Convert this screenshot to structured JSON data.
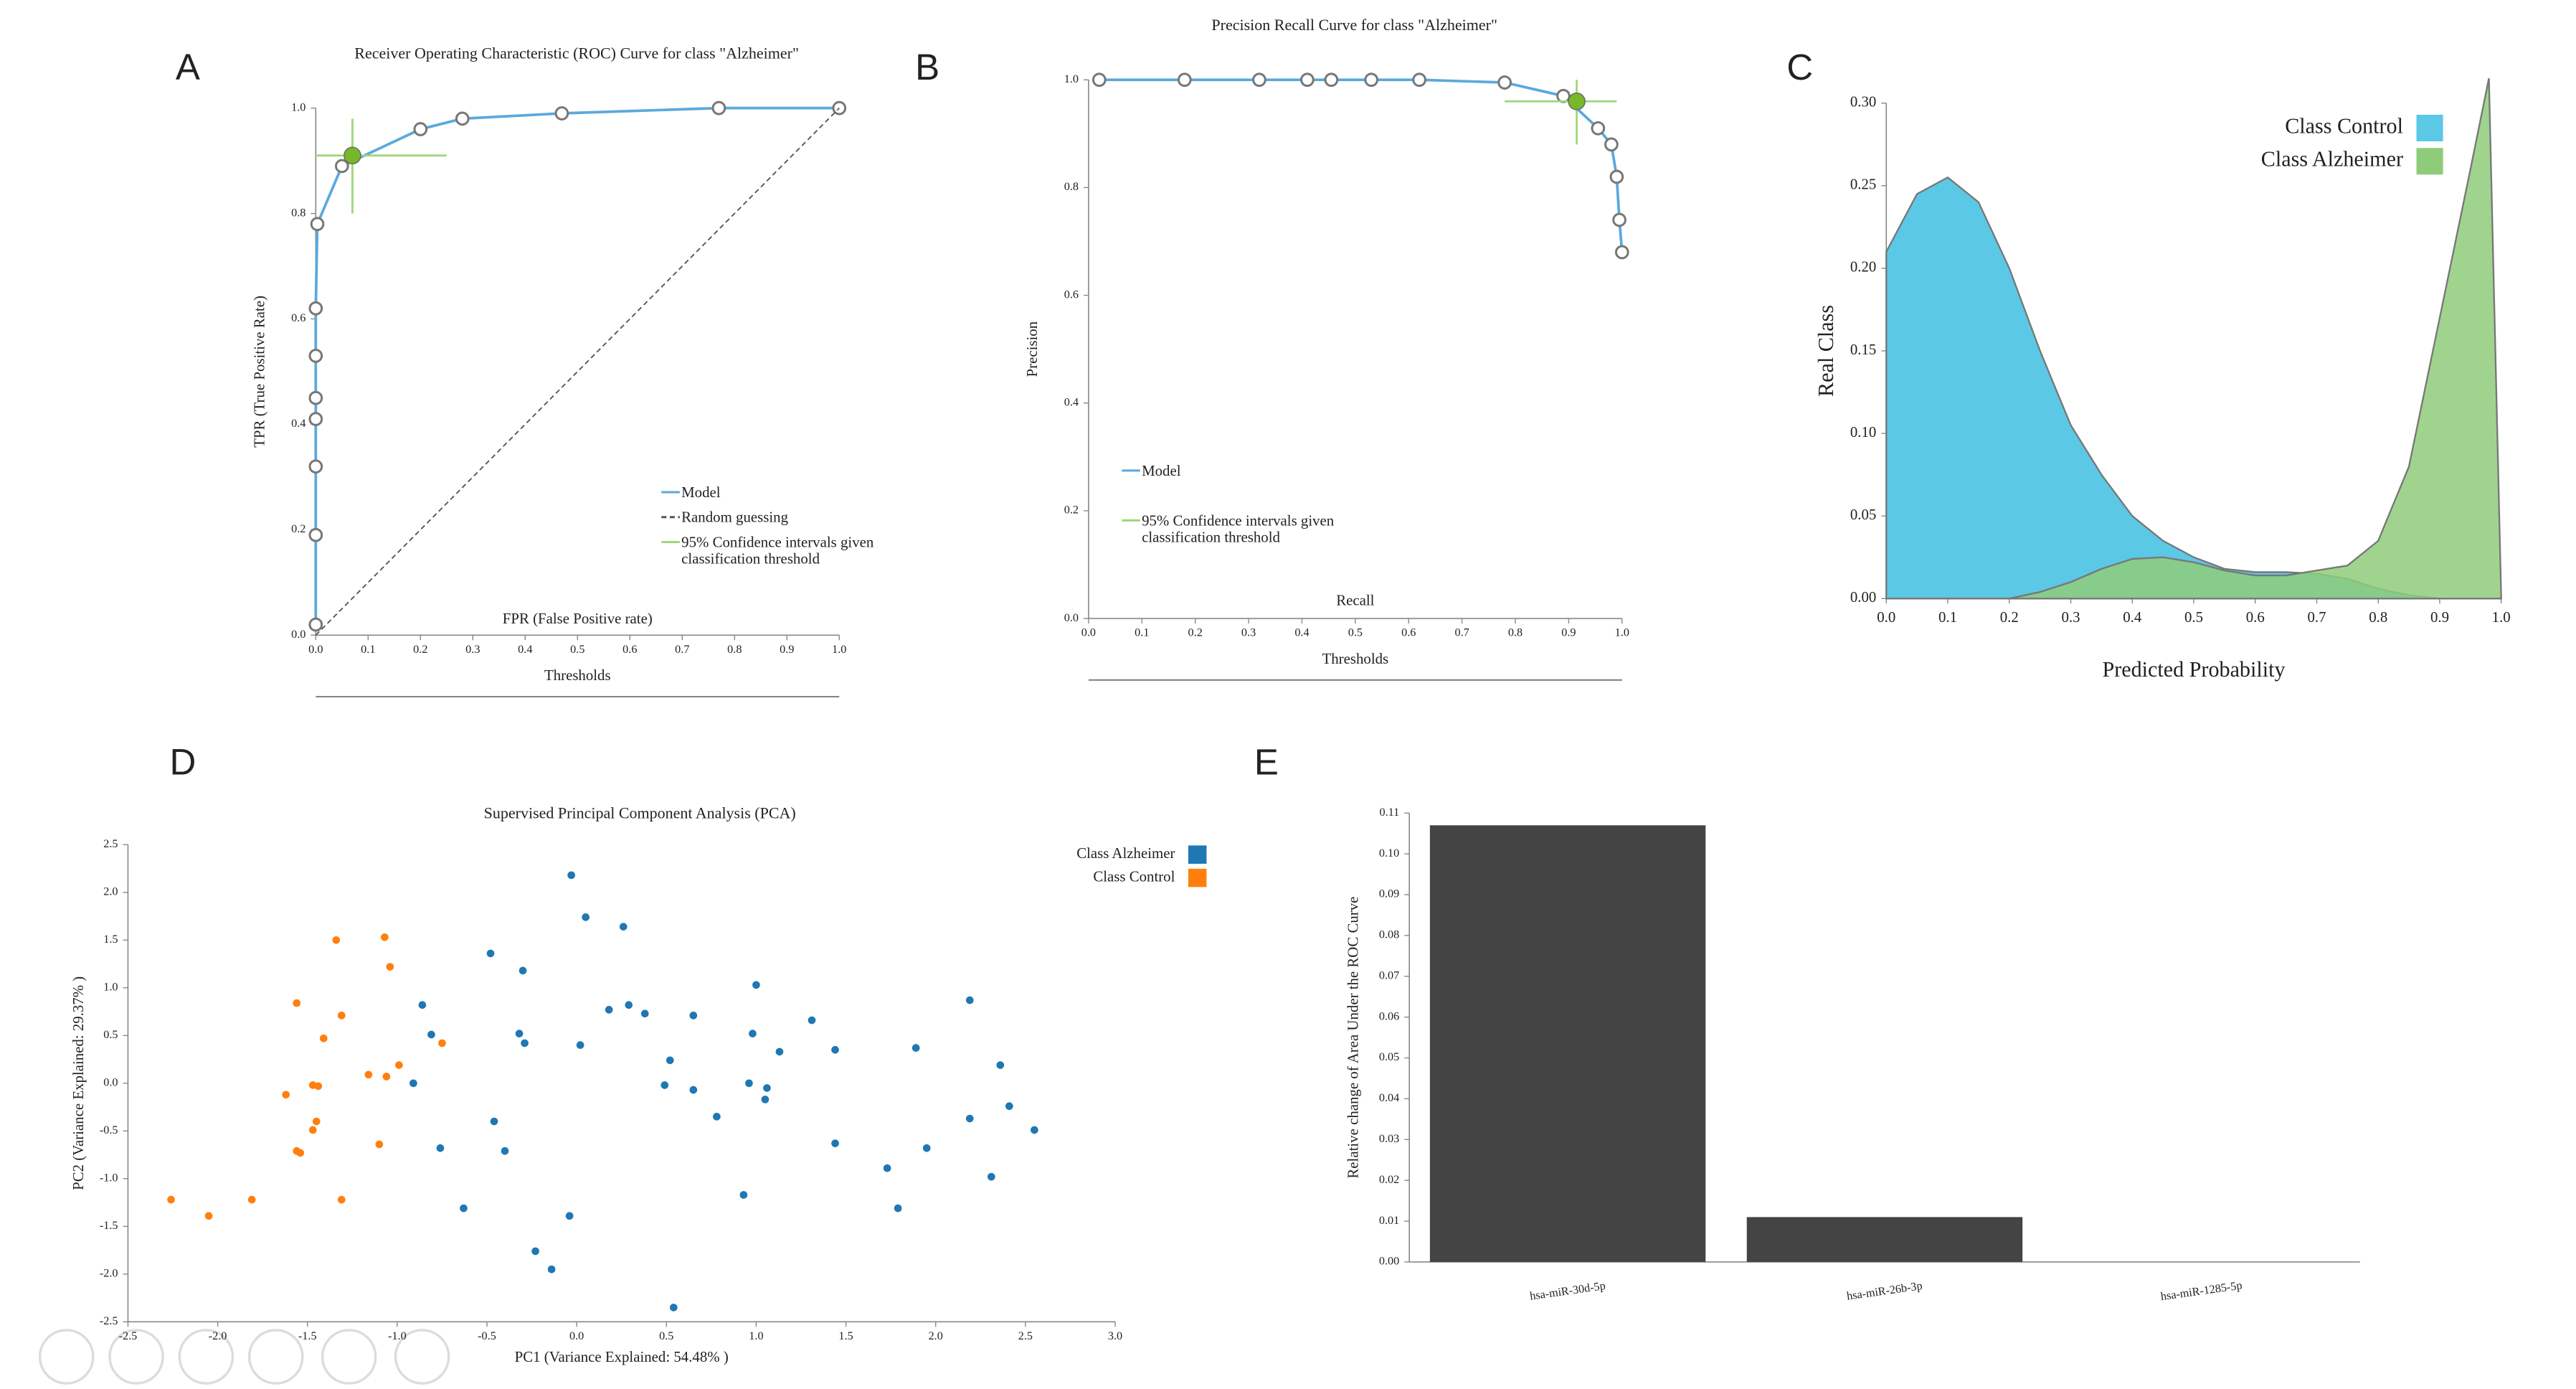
{
  "chart_data": [
    {
      "type": "line",
      "panel": "A",
      "title": "Receiver Operating Characteristic (ROC) Curve for class \"Alzheimer\"",
      "xlabel": "FPR (False Positive rate)",
      "ylabel": "TPR (True Positive Rate)",
      "secondary_xlabel": "Thresholds",
      "xlim": [
        0,
        1
      ],
      "ylim": [
        0,
        1
      ],
      "xticks": [
        {
          "value": 0,
          "label": "0.0"
        },
        0.1,
        0.2,
        0.3,
        0.4,
        0.5,
        0.6,
        0.7,
        0.8,
        0.9,
        {
          "value": 1,
          "label": "1.0"
        }
      ],
      "yticks": [
        {
          "value": 0,
          "label": "0.0"
        },
        0.2,
        0.4,
        0.6,
        0.8,
        {
          "value": 1,
          "label": "1.0"
        }
      ],
      "legend": "lower right",
      "series": [
        {
          "name": "Model",
          "color": "#5aa9dc",
          "markers": true,
          "x": [
            0,
            0,
            0,
            0,
            0,
            0,
            0,
            0.003,
            0.05,
            0.2,
            0.28,
            0.47,
            0.77,
            1.0
          ],
          "values": [
            0.02,
            0.19,
            0.32,
            0.41,
            0.45,
            0.53,
            0.62,
            0.78,
            0.89,
            0.96,
            0.98,
            0.99,
            1.0,
            1.0
          ]
        },
        {
          "name": "Random guessing",
          "color": "#555555",
          "style": "dashed",
          "x": [
            0,
            1
          ],
          "values": [
            0,
            1
          ]
        },
        {
          "name": "95% Confidence intervals given classification threshold",
          "color": "#9fd67a",
          "point_color": "#77b82a",
          "x": [
            0.07
          ],
          "values": [
            0.91
          ],
          "x_ci": [
            0,
            0.25
          ],
          "y_ci": [
            0.8,
            0.98
          ]
        }
      ]
    },
    {
      "type": "line",
      "panel": "B",
      "title": "Precision Recall Curve for class \"Alzheimer\"",
      "xlabel": "Recall",
      "ylabel": "Precision",
      "secondary_xlabel": "Thresholds",
      "xlim": [
        0,
        1
      ],
      "ylim": [
        0,
        1
      ],
      "xticks": [
        {
          "value": 0,
          "label": "0.0"
        },
        0.1,
        0.2,
        0.3,
        0.4,
        0.5,
        0.6,
        0.7,
        0.8,
        0.9,
        {
          "value": 1,
          "label": "1.0"
        }
      ],
      "yticks": [
        {
          "value": 0,
          "label": "0.0"
        },
        0.2,
        0.4,
        0.6,
        0.8,
        {
          "value": 1,
          "label": "1.0"
        }
      ],
      "legend": "lower left",
      "series": [
        {
          "name": "Model",
          "color": "#5aa9dc",
          "markers": true,
          "x": [
            0.02,
            0.18,
            0.32,
            0.41,
            0.455,
            0.53,
            0.62,
            0.78,
            0.89,
            0.955,
            0.98,
            0.99,
            0.995,
            1.0
          ],
          "values": [
            1.0,
            1.0,
            1.0,
            1.0,
            1.0,
            1.0,
            1.0,
            0.995,
            0.97,
            0.91,
            0.88,
            0.82,
            0.74,
            0.68
          ]
        },
        {
          "name": "95% Confidence intervals given classification threshold",
          "color": "#9fd67a",
          "point_color": "#77b82a",
          "x": [
            0.915
          ],
          "values": [
            0.96
          ],
          "x_ci": [
            0.78,
            0.99
          ],
          "y_ci": [
            0.88,
            1.0
          ]
        }
      ]
    },
    {
      "type": "area",
      "panel": "C",
      "xlabel": "Predicted Probability",
      "ylabel": "Real Class",
      "xlim": [
        0,
        1
      ],
      "ylim": [
        0,
        0.3
      ],
      "xticks": [
        {
          "value": 0,
          "label": "0.0"
        },
        0.1,
        0.2,
        0.3,
        0.4,
        0.5,
        0.6,
        0.7,
        0.8,
        0.9,
        {
          "value": 1,
          "label": "1.0"
        }
      ],
      "yticks": [
        {
          "value": 0,
          "label": "0.00"
        },
        0.05,
        {
          "value": 0.1,
          "label": "0.10"
        },
        0.15,
        {
          "value": 0.2,
          "label": "0.20"
        },
        0.25,
        {
          "value": 0.3,
          "label": "0.30"
        }
      ],
      "legend": "upper right",
      "series": [
        {
          "name": "Class Control",
          "color": "#5bc8e6",
          "x": [
            0,
            0.05,
            0.1,
            0.15,
            0.2,
            0.25,
            0.3,
            0.35,
            0.4,
            0.45,
            0.5,
            0.55,
            0.6,
            0.65,
            0.7,
            0.75,
            0.8,
            0.85,
            0.9
          ],
          "values": [
            0.21,
            0.245,
            0.255,
            0.24,
            0.2,
            0.15,
            0.105,
            0.075,
            0.05,
            0.035,
            0.025,
            0.018,
            0.016,
            0.016,
            0.015,
            0.012,
            0.006,
            0.002,
            0
          ]
        },
        {
          "name": "Class Alzheimer",
          "color": "#8fcc7a",
          "x": [
            0,
            0.2,
            0.25,
            0.3,
            0.35,
            0.4,
            0.45,
            0.5,
            0.55,
            0.6,
            0.65,
            0.7,
            0.75,
            0.8,
            0.85,
            0.9,
            0.95,
            0.98,
            1.0
          ],
          "values": [
            0,
            0,
            0.004,
            0.01,
            0.018,
            0.024,
            0.025,
            0.022,
            0.017,
            0.014,
            0.014,
            0.017,
            0.02,
            0.035,
            0.08,
            0.17,
            0.26,
            0.315,
            0
          ]
        }
      ]
    },
    {
      "type": "scatter",
      "panel": "D",
      "title": "Supervised Principal Component Analysis (PCA)",
      "xlabel": "PC1 (Variance Explained: 54.48% )",
      "ylabel": "PC2 (Variance Explained: 29.37% )",
      "xlim": [
        -2.5,
        3
      ],
      "ylim": [
        -2.5,
        2.5
      ],
      "xticks": [
        -2.5,
        {
          "value": -2,
          "label": "-2.0"
        },
        -1.5,
        {
          "value": -1,
          "label": "-1.0"
        },
        -0.5,
        {
          "value": 0,
          "label": "0.0"
        },
        0.5,
        {
          "value": 1,
          "label": "1.0"
        },
        1.5,
        {
          "value": 2,
          "label": "2.0"
        },
        2.5,
        {
          "value": 3,
          "label": "3.0"
        }
      ],
      "yticks": [
        -2.5,
        {
          "value": -2,
          "label": "-2.0"
        },
        -1.5,
        {
          "value": -1,
          "label": "-1.0"
        },
        -0.5,
        {
          "value": 0,
          "label": "0.0"
        },
        0.5,
        {
          "value": 1,
          "label": "1.0"
        },
        1.5,
        {
          "value": 2,
          "label": "2.0"
        },
        2.5
      ],
      "legend": "upper right",
      "series": [
        {
          "name": "Class Alzheimer",
          "color": "#1f77b4",
          "x": [
            -0.03,
            0.05,
            0.26,
            -0.48,
            -0.3,
            1.0,
            -0.86,
            0.29,
            0.18,
            0.38,
            0.65,
            2.19,
            1.31,
            -0.32,
            0.98,
            -0.29,
            0.02,
            -0.81,
            1.13,
            1.44,
            1.89,
            2.36,
            0.52,
            -0.91,
            0.49,
            0.96,
            1.06,
            0.65,
            1.05,
            2.41,
            0.78,
            2.19,
            -0.46,
            2.55,
            -0.76,
            -0.4,
            1.44,
            1.95,
            1.73,
            2.31,
            0.93,
            -0.63,
            1.79,
            -0.04,
            -0.23,
            -0.14,
            0.54
          ],
          "values": [
            2.18,
            1.74,
            1.64,
            1.36,
            1.18,
            1.03,
            0.82,
            0.82,
            0.77,
            0.73,
            0.71,
            0.87,
            0.66,
            0.52,
            0.52,
            0.42,
            0.4,
            0.51,
            0.33,
            0.35,
            0.37,
            0.19,
            0.24,
            0.0,
            -0.02,
            0.0,
            -0.05,
            -0.07,
            -0.17,
            -0.24,
            -0.35,
            -0.37,
            -0.4,
            -0.49,
            -0.68,
            -0.71,
            -0.63,
            -0.68,
            -0.89,
            -0.98,
            -1.17,
            -1.31,
            -1.31,
            -1.39,
            -1.76,
            -1.95,
            -2.35
          ]
        },
        {
          "name": "Class Control",
          "color": "#ff7f0e",
          "x": [
            -1.07,
            -1.34,
            -1.04,
            -1.56,
            -1.31,
            -1.41,
            -0.75,
            -0.99,
            -1.16,
            -1.06,
            -1.47,
            -1.44,
            -1.62,
            -1.45,
            -1.47,
            -1.1,
            -1.54,
            -1.56,
            -1.31,
            -1.81,
            -2.26,
            -2.05
          ],
          "values": [
            1.53,
            1.5,
            1.22,
            0.84,
            0.71,
            0.47,
            0.42,
            0.19,
            0.09,
            0.07,
            -0.02,
            -0.03,
            -0.12,
            -0.4,
            -0.49,
            -0.64,
            -0.73,
            -0.71,
            -1.22,
            -1.22,
            -1.22,
            -1.39
          ]
        }
      ]
    },
    {
      "type": "bar",
      "panel": "E",
      "ylabel": "Relative change of Area Under the ROC Curve",
      "categories": [
        "hsa-miR-30d-5p",
        "hsa-miR-26b-3p",
        "hsa-miR-1285-5p"
      ],
      "values": [
        0.107,
        0.011,
        0
      ],
      "color": "#444444",
      "ylim": [
        0,
        0.11
      ],
      "yticks": [
        {
          "value": 0,
          "label": "0.00"
        },
        0.01,
        0.02,
        0.03,
        0.04,
        0.05,
        0.06,
        0.07,
        0.08,
        0.09,
        {
          "value": 0.1,
          "label": "0.10"
        },
        0.11
      ]
    }
  ]
}
